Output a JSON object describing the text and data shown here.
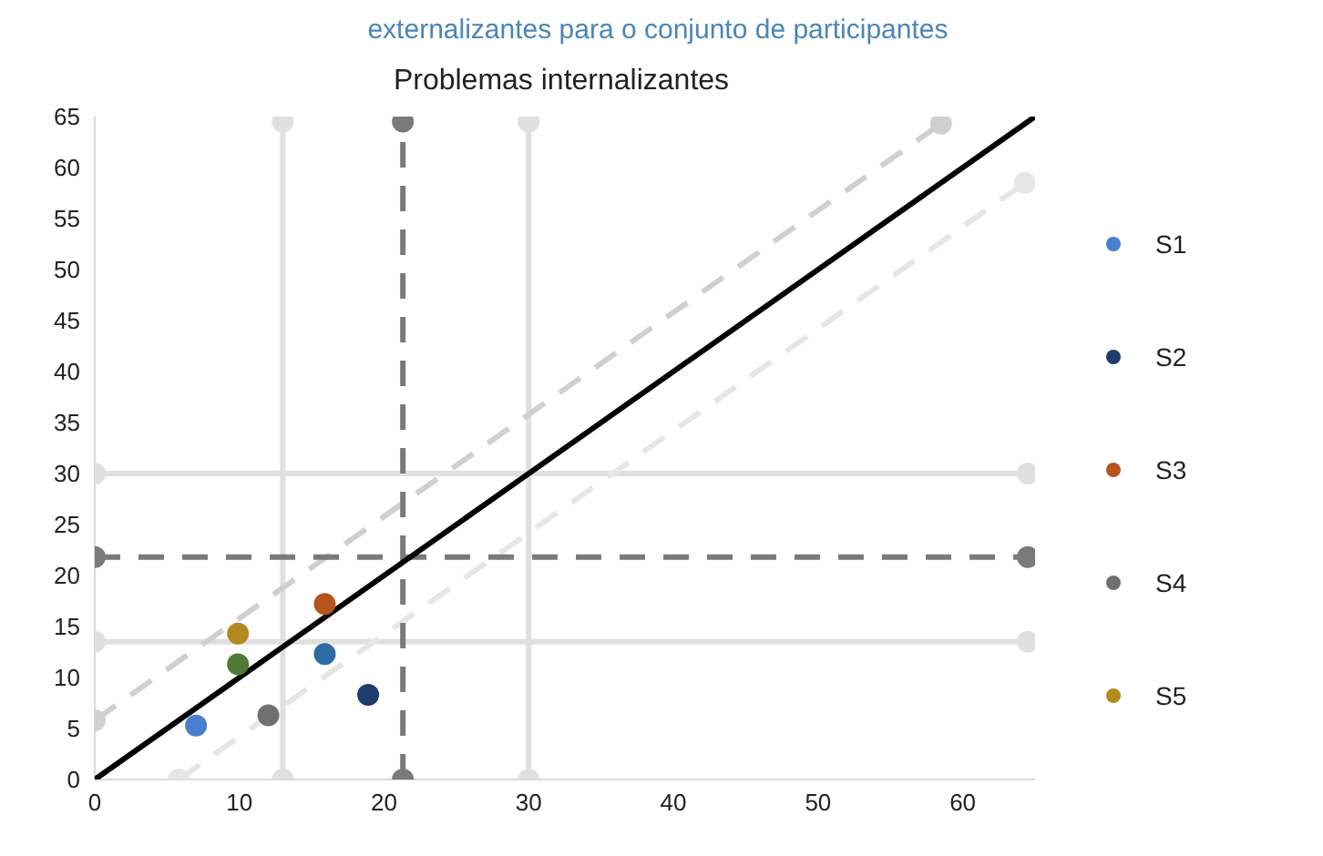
{
  "chart_data": {
    "type": "scatter",
    "title": "externalizantes para o conjunto de participantes",
    "subtitle": "Problemas internalizantes",
    "xlim": [
      0,
      65
    ],
    "ylim": [
      0,
      65
    ],
    "xticks": [
      0,
      10,
      20,
      30,
      40,
      50,
      60
    ],
    "yticks": [
      0,
      5,
      10,
      15,
      20,
      25,
      30,
      35,
      40,
      45,
      50,
      55,
      60,
      65
    ],
    "grid": false,
    "legend": "right",
    "marker": "circle",
    "series": [
      {
        "type": "line",
        "color": "#e0e0e0",
        "x": [
          13,
          13
        ],
        "values": [
          0,
          64.5
        ],
        "line_style": "solid",
        "marker": "circle"
      },
      {
        "type": "line",
        "color": "#e0e0e0",
        "x": [
          30,
          30
        ],
        "values": [
          0,
          64.5
        ],
        "line_style": "solid",
        "marker": "circle"
      },
      {
        "type": "line",
        "color": "#e0e0e0",
        "x": [
          0,
          64.5
        ],
        "values": [
          30,
          30
        ],
        "line_style": "solid",
        "marker": "circle"
      },
      {
        "type": "line",
        "color": "#e0e0e0",
        "x": [
          0,
          64.5
        ],
        "values": [
          13.5,
          13.5
        ],
        "line_style": "solid",
        "marker": "circle"
      },
      {
        "type": "line",
        "color": "#d0d0d0",
        "x": [
          0,
          58.5
        ],
        "values": [
          5.8,
          64.3
        ],
        "line_style": "dashed",
        "marker": "circle"
      },
      {
        "type": "line",
        "color": "#e6e6e6",
        "x": [
          5.8,
          64.3
        ],
        "values": [
          0,
          58.5
        ],
        "line_style": "dashed",
        "marker": "circle"
      },
      {
        "type": "line",
        "color": "#7a7a7a",
        "x": [
          21.3,
          21.3
        ],
        "values": [
          0,
          64.5
        ],
        "line_style": "dashed",
        "marker": "circle"
      },
      {
        "type": "line",
        "color": "#7a7a7a",
        "x": [
          0,
          64.5
        ],
        "values": [
          21.8,
          21.8
        ],
        "line_style": "dashed",
        "marker": "circle"
      },
      {
        "type": "line",
        "color": "#000000",
        "x": [
          0,
          65
        ],
        "values": [
          0,
          65
        ],
        "line_style": "solid",
        "marker": "none"
      },
      {
        "name": "S1",
        "color": "#4a7fcf",
        "x": [
          7
        ],
        "values": [
          5.3
        ]
      },
      {
        "name": "S2",
        "color": "#1f3d6e",
        "x": [
          18.9
        ],
        "values": [
          8.3
        ]
      },
      {
        "name": "S3",
        "color": "#b5541c",
        "x": [
          15.9
        ],
        "values": [
          17.2
        ]
      },
      {
        "name": "S4",
        "color": "#707070",
        "x": [
          12
        ],
        "values": [
          6.3
        ]
      },
      {
        "name": "S5",
        "color": "#b38a1e",
        "x": [
          9.9
        ],
        "values": [
          14.3
        ]
      },
      {
        "color": "#4e7a33",
        "x": [
          9.9
        ],
        "values": [
          11.3
        ]
      },
      {
        "color": "#2e6aa3",
        "x": [
          15.9
        ],
        "values": [
          12.3
        ]
      }
    ]
  }
}
